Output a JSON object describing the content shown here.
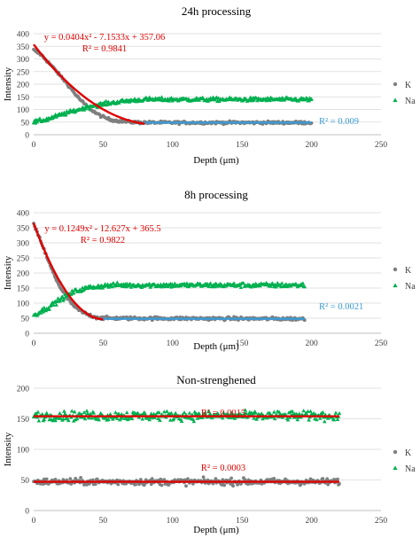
{
  "chart_data": [
    {
      "type": "scatter",
      "title": "24h processing",
      "xlabel": "Depth (μm)",
      "ylabel": "Intensity",
      "xlim": [
        0,
        250
      ],
      "ylim": [
        0,
        400
      ],
      "xticks": [
        "0",
        "50",
        "100",
        "150",
        "200",
        "250"
      ],
      "yticks": [
        "0",
        "50",
        "100",
        "150",
        "200",
        "250",
        "300",
        "350",
        "400"
      ],
      "legend": [
        "K",
        "Na"
      ],
      "grid": "horizontal",
      "legend_position": "right",
      "series": [
        {
          "name": "K",
          "color": "#7f7f7f",
          "marker": "circle",
          "x_range": [
            0,
            200
          ],
          "profile": [
            [
              0,
              335
            ],
            [
              5,
              318
            ],
            [
              10,
              290
            ],
            [
              15,
              260
            ],
            [
              20,
              228
            ],
            [
              25,
              196
            ],
            [
              30,
              160
            ],
            [
              35,
              130
            ],
            [
              40,
              105
            ],
            [
              45,
              85
            ],
            [
              50,
              70
            ],
            [
              55,
              60
            ],
            [
              60,
              55
            ],
            [
              70,
              50
            ],
            [
              80,
              48
            ],
            [
              200,
              48
            ]
          ]
        },
        {
          "name": "Na",
          "color": "#00b050",
          "marker": "triangle",
          "x_range": [
            0,
            200
          ],
          "profile": [
            [
              0,
              50
            ],
            [
              10,
              62
            ],
            [
              20,
              80
            ],
            [
              30,
              96
            ],
            [
              40,
              112
            ],
            [
              50,
              122
            ],
            [
              60,
              130
            ],
            [
              70,
              136
            ],
            [
              80,
              140
            ],
            [
              200,
              140
            ]
          ]
        }
      ],
      "fits": [
        {
          "series": "K",
          "equation": "y = 0.0404x² - 7.1533x + 357.06",
          "r2": "R² = 0.9841",
          "x_range": [
            0,
            80
          ],
          "color": "#e00000",
          "coef": [
            0.0404,
            -7.1533,
            357.06
          ]
        },
        {
          "series": "K",
          "r2": "R² = 0.009",
          "x_range": [
            80,
            200
          ],
          "color": "#3a9bd5",
          "coef": [
            0,
            0,
            48
          ]
        }
      ]
    },
    {
      "type": "scatter",
      "title": "8h processing",
      "xlabel": "Depth (μm)",
      "ylabel": "Intensity",
      "xlim": [
        0,
        250
      ],
      "ylim": [
        0,
        400
      ],
      "xticks": [
        "0",
        "50",
        "100",
        "150",
        "200",
        "250"
      ],
      "yticks": [
        "0",
        "50",
        "100",
        "150",
        "200",
        "250",
        "300",
        "350",
        "400"
      ],
      "legend": [
        "K",
        "Na"
      ],
      "grid": "horizontal",
      "legend_position": "right",
      "series": [
        {
          "name": "K",
          "color": "#7f7f7f",
          "marker": "circle",
          "x_range": [
            0,
            195
          ],
          "profile": [
            [
              0,
              360
            ],
            [
              5,
              308
            ],
            [
              10,
              245
            ],
            [
              15,
              190
            ],
            [
              20,
              145
            ],
            [
              25,
              112
            ],
            [
              30,
              85
            ],
            [
              35,
              70
            ],
            [
              40,
              60
            ],
            [
              45,
              53
            ],
            [
              50,
              50
            ],
            [
              195,
              48
            ]
          ]
        },
        {
          "name": "Na",
          "color": "#00b050",
          "marker": "triangle",
          "x_range": [
            0,
            195
          ],
          "profile": [
            [
              0,
              60
            ],
            [
              10,
              85
            ],
            [
              20,
              115
            ],
            [
              30,
              140
            ],
            [
              40,
              152
            ],
            [
              50,
              158
            ],
            [
              60,
              160
            ],
            [
              195,
              160
            ]
          ]
        }
      ],
      "fits": [
        {
          "series": "K",
          "equation": "y = 0.1249x² - 12.627x + 365.5",
          "r2": "R² = 0.9822",
          "x_range": [
            0,
            50
          ],
          "color": "#e00000",
          "coef": [
            0.1249,
            -12.627,
            365.5
          ]
        },
        {
          "series": "K",
          "r2": "R² = 0.0021",
          "x_range": [
            50,
            195
          ],
          "color": "#3a9bd5",
          "coef": [
            0,
            0,
            48
          ]
        }
      ]
    },
    {
      "type": "scatter",
      "title": "Non-strenghened",
      "xlabel": "Depth (μm)",
      "ylabel": "Intensity",
      "xlim": [
        0,
        250
      ],
      "ylim": [
        0,
        200
      ],
      "xticks": [
        "0",
        "50",
        "100",
        "150",
        "200",
        "250"
      ],
      "yticks": [
        "0",
        "50",
        "100",
        "150",
        "200"
      ],
      "legend": [
        "K",
        "Na"
      ],
      "grid": "horizontal",
      "legend_position": "right",
      "series": [
        {
          "name": "K",
          "color": "#7f7f7f",
          "marker": "circle",
          "x_range": [
            0,
            220
          ],
          "profile": [
            [
              0,
              47
            ],
            [
              220,
              47
            ]
          ]
        },
        {
          "name": "Na",
          "color": "#00b050",
          "marker": "triangle",
          "x_range": [
            0,
            220
          ],
          "profile": [
            [
              0,
              155
            ],
            [
              220,
              155
            ]
          ]
        }
      ],
      "fits": [
        {
          "series": "Na",
          "r2": "R² = 0.0015",
          "x_range": [
            0,
            220
          ],
          "color": "#e00000",
          "coef": [
            0,
            0,
            154
          ]
        },
        {
          "series": "K",
          "r2": "R² = 0.0003",
          "x_range": [
            0,
            220
          ],
          "color": "#e00000",
          "coef": [
            0,
            0,
            47
          ]
        }
      ]
    }
  ]
}
